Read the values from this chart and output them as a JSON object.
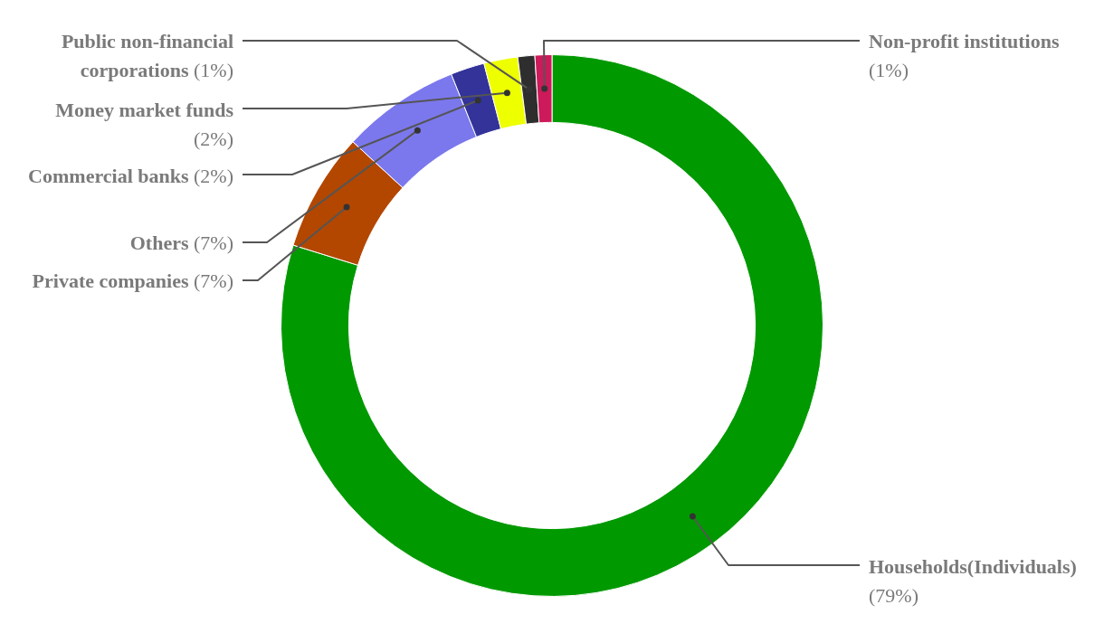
{
  "chart_data": {
    "type": "donut",
    "categories": [
      "Households(Individuals)",
      "Private companies",
      "Others",
      "Commercial banks",
      "Money market funds",
      "Public non-financial corporations",
      "Non-profit institutions"
    ],
    "values": [
      79,
      7,
      7,
      2,
      2,
      1,
      1
    ],
    "colors": [
      "#009900",
      "#b34700",
      "#7b78ee",
      "#333399",
      "#eeff00",
      "#2e2e2e",
      "#cc1a5a"
    ],
    "value_labels": [
      "(79%)",
      "(7%)",
      "(7%)",
      "(2%)",
      "(2%)",
      "(1%)",
      "(1%)"
    ],
    "legend": false
  }
}
